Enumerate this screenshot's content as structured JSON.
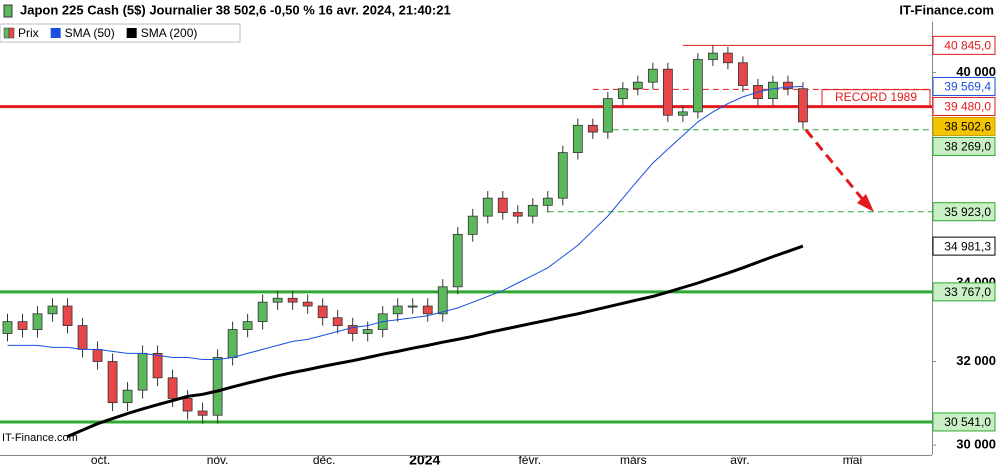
{
  "header": {
    "title": "Japon 225 Cash (5$) Journalier 38 502,6 -0,50 % 16 avr. 2024, 21:40:21",
    "brand": "IT-Finance.com"
  },
  "watermark": "IT-Finance.com",
  "chart_data": {
    "type": "candlestick",
    "log_scale": true,
    "xlim": [
      -0.5,
      61.6
    ],
    "xticks": [
      {
        "value": 6.2,
        "label": "oct."
      },
      {
        "value": 14,
        "label": "nov."
      },
      {
        "value": 21.1,
        "label": "déc."
      },
      {
        "value": 27.8,
        "label": "2024"
      },
      {
        "value": 34.8,
        "label": "févr."
      },
      {
        "value": 41.7,
        "label": "mars"
      },
      {
        "value": 48.8,
        "label": "avr."
      },
      {
        "value": 56.3,
        "label": "mai"
      }
    ],
    "ylim": [
      29772,
      42300
    ],
    "yticks": [
      {
        "value": 30000,
        "label": "30 000"
      },
      {
        "value": 32000,
        "label": "32 000"
      },
      {
        "value": 34000,
        "label": "34 000"
      },
      {
        "value": 40000,
        "label": "40 000"
      }
    ],
    "up_color": "#5cb85c",
    "down_color": "#e8474a",
    "candles": {
      "name": "Prix",
      "open": [
        32700,
        33000,
        32800,
        33200,
        33400,
        32900,
        32300,
        32000,
        31000,
        31300,
        32200,
        31600,
        31100,
        30800,
        30700,
        32100,
        32800,
        33000,
        33500,
        33600,
        33500,
        33400,
        33100,
        32900,
        32700,
        32800,
        33200,
        33400,
        33400,
        33200,
        33900,
        35300,
        35800,
        36300,
        35900,
        35800,
        36100,
        36300,
        37600,
        38400,
        38200,
        39200,
        39500,
        39700,
        40100,
        38700,
        38800,
        40400,
        40600,
        40300,
        39600,
        39200,
        39700,
        39500
      ],
      "high": [
        33200,
        33200,
        33400,
        33600,
        33600,
        33100,
        32500,
        32200,
        31500,
        32400,
        32400,
        31800,
        31300,
        31000,
        32300,
        33000,
        33200,
        33700,
        33800,
        33800,
        33700,
        33600,
        33300,
        33100,
        33000,
        33400,
        33600,
        33600,
        33600,
        34100,
        35500,
        36000,
        36500,
        36500,
        36100,
        36300,
        36500,
        37800,
        38600,
        38600,
        39400,
        39700,
        39900,
        40300,
        40300,
        39000,
        40600,
        40845,
        40800,
        40500,
        39800,
        39900,
        39900,
        39700
      ],
      "low": [
        32500,
        32600,
        32600,
        33000,
        32700,
        32100,
        31800,
        30800,
        30800,
        31100,
        31400,
        30900,
        30600,
        30500,
        30500,
        31900,
        32600,
        32800,
        33300,
        33300,
        33200,
        32900,
        32700,
        32500,
        32500,
        32600,
        33000,
        33200,
        33000,
        33000,
        33700,
        35100,
        35600,
        35700,
        35600,
        35600,
        35900,
        36100,
        37400,
        38000,
        38000,
        39000,
        39300,
        39500,
        38500,
        38500,
        38600,
        40200,
        40100,
        39400,
        39000,
        39000,
        39300,
        38300
      ],
      "close": [
        33000,
        32800,
        33200,
        33400,
        32900,
        32300,
        32000,
        31000,
        31300,
        32200,
        31600,
        31100,
        30800,
        30700,
        32100,
        32800,
        33000,
        33500,
        33600,
        33500,
        33400,
        33100,
        32900,
        32700,
        32800,
        33200,
        33400,
        33400,
        33200,
        33900,
        35300,
        35800,
        36300,
        35900,
        35800,
        36100,
        36300,
        37600,
        38400,
        38200,
        39200,
        39500,
        39700,
        40100,
        38700,
        38800,
        40400,
        40600,
        40300,
        39600,
        39200,
        39700,
        39500,
        38502.6
      ],
      "last_label": "38 502,6"
    },
    "series": [
      {
        "name": "SMA (50)",
        "color": "#1a4fe0",
        "width": 1,
        "last_label": "39 569,4",
        "values": [
          32400,
          32400,
          32400,
          32350,
          32350,
          32300,
          32300,
          32250,
          32200,
          32200,
          32150,
          32100,
          32100,
          32050,
          32050,
          32100,
          32200,
          32300,
          32400,
          32500,
          32550,
          32650,
          32750,
          32850,
          32900,
          33000,
          33050,
          33100,
          33150,
          33250,
          33350,
          33500,
          33650,
          33800,
          34000,
          34200,
          34400,
          34700,
          35000,
          35400,
          35800,
          36300,
          36800,
          37300,
          37700,
          38100,
          38500,
          38800,
          39050,
          39250,
          39400,
          39500,
          39550,
          39569.4
        ]
      },
      {
        "name": "SMA (200)",
        "color": "#000000",
        "width": 3,
        "last_label": "34 981,3",
        "values": [
          null,
          null,
          null,
          null,
          30200,
          30350,
          30500,
          30620,
          30740,
          30850,
          30950,
          31050,
          31150,
          31200,
          31280,
          31380,
          31470,
          31560,
          31650,
          31730,
          31800,
          31880,
          31950,
          32020,
          32100,
          32180,
          32250,
          32330,
          32400,
          32480,
          32550,
          32630,
          32720,
          32800,
          32880,
          32960,
          33040,
          33120,
          33200,
          33290,
          33380,
          33470,
          33560,
          33650,
          33760,
          33880,
          34000,
          34130,
          34260,
          34400,
          34550,
          34700,
          34840,
          34981.3
        ]
      }
    ],
    "levels": [
      {
        "value": 40845,
        "label": "40 845,0",
        "color": "#e31a1c",
        "width": 1,
        "dashed": false,
        "x_start": 45
      },
      {
        "value": 39480,
        "label": "39 480,0",
        "color": "#e31a1c",
        "width": 1,
        "dashed": true,
        "x_start": 39
      },
      {
        "value": 38957,
        "tag": "RECORD 1989",
        "color": "#e31a1c",
        "width": 3,
        "dashed": false,
        "x_start": -0.5
      },
      {
        "value": 38269,
        "label": "38 269,0",
        "color": "#2ea82e",
        "width": 1,
        "dashed": true,
        "x_start": 39
      },
      {
        "value": 35923,
        "label": "35 923,0",
        "color": "#2ea82e",
        "width": 1,
        "dashed": true,
        "x_start": 36
      },
      {
        "value": 33767,
        "label": "33 767,0",
        "color": "#2ea82e",
        "width": 3,
        "dashed": false,
        "x_start": -0.5
      },
      {
        "value": 30541,
        "label": "30 541,0",
        "color": "#2ea82e",
        "width": 3,
        "dashed": false,
        "x_start": -0.5
      }
    ]
  }
}
